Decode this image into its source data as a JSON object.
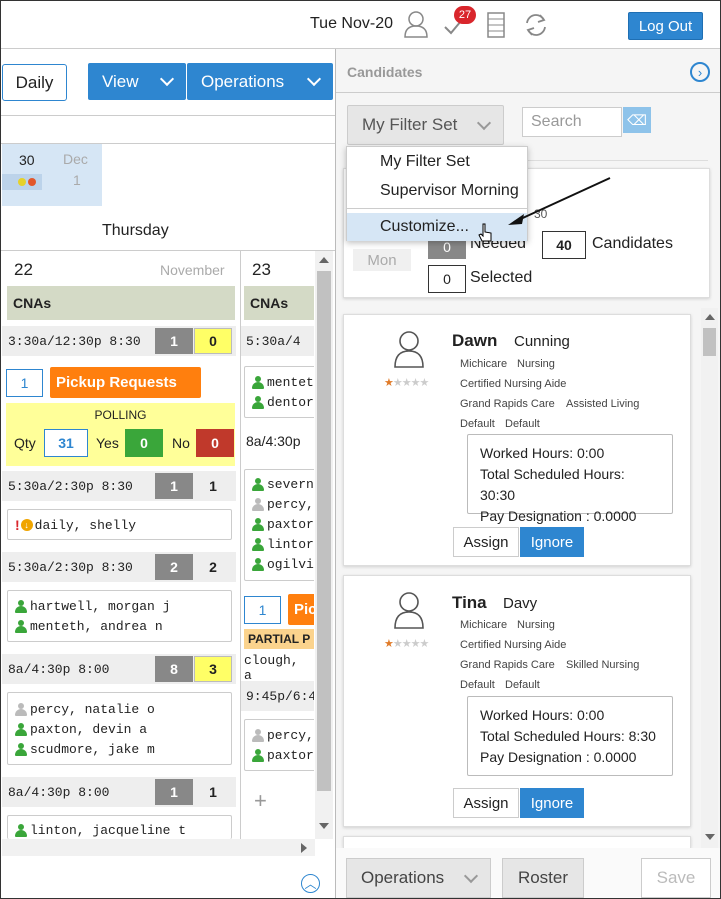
{
  "header": {
    "date": "Tue Nov-20",
    "notification_count": "27",
    "logout_label": "Log Out"
  },
  "toolbar": {
    "daily_label": "Daily",
    "view_label": "View",
    "operations_label": "Operations"
  },
  "calendar": {
    "day_num": "30",
    "next_month": "Dec",
    "next_day": "1",
    "day_name": "Thursday"
  },
  "col1": {
    "date": "22",
    "month": "November",
    "section": "CNAs",
    "shifts": [
      {
        "time": "3:30a/12:30p 8:30",
        "n1": "1",
        "n2": "0"
      },
      {
        "time": "5:30a/2:30p 8:30",
        "n1": "1",
        "n2": "1"
      },
      {
        "time": "5:30a/2:30p 8:30",
        "n1": "2",
        "n2": "2"
      },
      {
        "time": "8a/4:30p 8:00",
        "n1": "8",
        "n2": "3"
      },
      {
        "time": "8a/4:30p 8:00",
        "n1": "1",
        "n2": "1"
      }
    ],
    "pickup_count": "1",
    "pickup_label": "Pickup Requests",
    "polling_label": "POLLING",
    "qty_label": "Qty",
    "qty": "31",
    "yes_label": "Yes",
    "yes": "0",
    "no_label": "No",
    "no": "0",
    "daily_person": "daily, shelly",
    "group2": [
      "hartwell, morgan j",
      "menteth, andrea n"
    ],
    "group3": [
      "percy, natalie o",
      "paxton, devin a",
      "scudmore, jake m"
    ],
    "group4": [
      "linton, jacqueline t"
    ]
  },
  "col2": {
    "date": "23",
    "section": "CNAs",
    "shift1": "5:30a/4",
    "group1": [
      "mentet",
      "dentor"
    ],
    "shift2": "8a/4:30p",
    "group2": [
      "severn",
      "percy,",
      "paxtor",
      "lintor",
      "ogilvi"
    ],
    "pickup_count": "1",
    "pickup_label": "Pic",
    "partial_label": "PARTIAL P",
    "partial_person": "clough, a",
    "shift3": "9:45p/6:4",
    "group3": [
      "percy,",
      "paxtor"
    ],
    "plus": "+"
  },
  "panel": {
    "title": "Candidates",
    "filter_label": "My Filter Set",
    "search_placeholder": "Search",
    "dropdown": [
      "My Filter Set",
      "Supervisor Morning",
      "Customize..."
    ],
    "dd_partial": "30",
    "mon_label": "Mon",
    "needed_count": "0",
    "needed_label": "Needed",
    "candidates_count": "40",
    "candidates_label": "Candidates",
    "selected_count": "0",
    "selected_label": "Selected"
  },
  "candidates": [
    {
      "first": "Dawn",
      "last": "Cunning",
      "tags1": [
        "Michicare",
        "Nursing"
      ],
      "tags2": [
        "Certified Nursing Aide"
      ],
      "tags3": [
        "Grand Rapids Care",
        "Assisted Living"
      ],
      "tags4": [
        "Default",
        "Default"
      ],
      "worked": "Worked Hours: 0:00",
      "scheduled": "Total Scheduled Hours: 30:30",
      "pay": "Pay Designation : 0.0000",
      "rating": 1
    },
    {
      "first": "Tina",
      "last": "Davy",
      "tags1": [
        "Michicare",
        "Nursing"
      ],
      "tags2": [
        "Certified Nursing Aide"
      ],
      "tags3": [
        "Grand Rapids Care",
        "Skilled Nursing"
      ],
      "tags4": [
        "Default",
        "Default"
      ],
      "worked": "Worked Hours: 0:00",
      "scheduled": "Total Scheduled Hours: 8:30",
      "pay": "Pay Designation : 0.0000",
      "rating": 1
    }
  ],
  "actions": {
    "assign": "Assign",
    "ignore": "Ignore"
  },
  "footer": {
    "operations": "Operations",
    "roster": "Roster",
    "save": "Save"
  },
  "colors": {
    "accent": "#2e86d0",
    "pickup": "#ff7f0e",
    "yes": "#3aa63a",
    "no": "#c0392b"
  }
}
